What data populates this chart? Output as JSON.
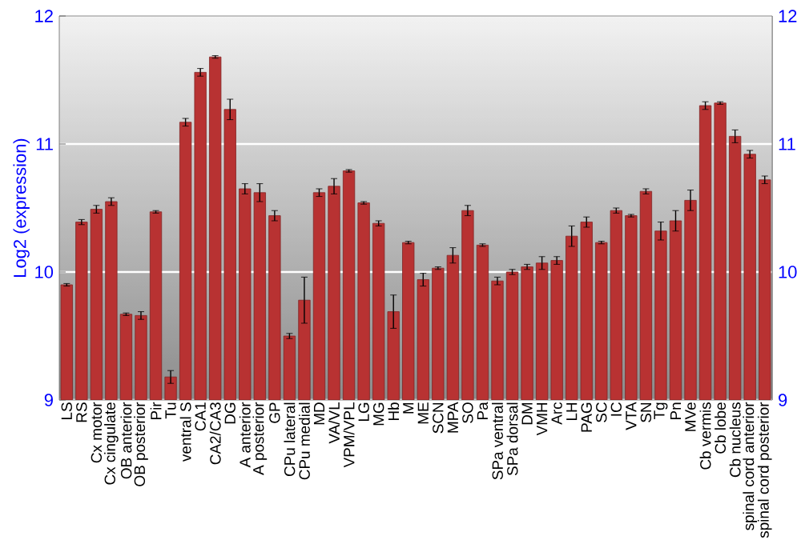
{
  "chart_data": {
    "type": "bar",
    "ylabel": "Log2 (expression)",
    "categories": [
      "LS",
      "RS",
      "Cx motor",
      "Cx cingulate",
      "OB anterior",
      "OB posterior",
      "Pir",
      "Tu",
      "ventral S",
      "CA1",
      "CA2/CA3",
      "DG",
      "A anterior",
      "A posterior",
      "GP",
      "CPu lateral",
      "CPu medial",
      "MD",
      "VA/VL",
      "VPM/VPL",
      "LG",
      "MG",
      "Hb",
      "M",
      "ME",
      "SCN",
      "MPA",
      "SO",
      "Pa",
      "SPa ventral",
      "SPa dorsal",
      "DM",
      "VMH",
      "Arc",
      "LH",
      "PAG",
      "SC",
      "IC",
      "VTA",
      "SN",
      "Tg",
      "Pn",
      "MVe",
      "Cb vermis",
      "Cb lobe",
      "Cb nucleus",
      "spinal cord anterior",
      "spinal cord posterior"
    ],
    "values": [
      9.9,
      10.39,
      10.49,
      10.55,
      9.67,
      9.66,
      10.47,
      9.18,
      11.17,
      11.56,
      11.68,
      11.27,
      10.65,
      10.62,
      10.44,
      9.5,
      9.78,
      10.62,
      10.67,
      10.79,
      10.54,
      10.38,
      9.69,
      10.23,
      9.94,
      10.03,
      10.13,
      10.48,
      10.21,
      9.93,
      10.0,
      10.04,
      10.07,
      10.09,
      10.28,
      10.39,
      10.23,
      10.48,
      10.44,
      10.63,
      10.32,
      10.4,
      10.56,
      11.3,
      11.32,
      11.06,
      10.92,
      10.72
    ],
    "errors": [
      0.01,
      0.02,
      0.03,
      0.03,
      0.01,
      0.03,
      0.01,
      0.05,
      0.03,
      0.03,
      0.01,
      0.08,
      0.04,
      0.07,
      0.04,
      0.02,
      0.18,
      0.03,
      0.06,
      0.01,
      0.01,
      0.02,
      0.13,
      0.01,
      0.05,
      0.01,
      0.06,
      0.04,
      0.01,
      0.03,
      0.02,
      0.02,
      0.05,
      0.03,
      0.08,
      0.04,
      0.01,
      0.02,
      0.01,
      0.02,
      0.07,
      0.08,
      0.08,
      0.03,
      0.01,
      0.05,
      0.03,
      0.03
    ],
    "color": "#b83232",
    "ylim": [
      9,
      12
    ],
    "yticks": [
      9,
      10,
      11,
      12
    ],
    "y2lim": [
      9,
      12
    ],
    "y2ticks": [
      9,
      10,
      11,
      12
    ],
    "grid": "y"
  }
}
